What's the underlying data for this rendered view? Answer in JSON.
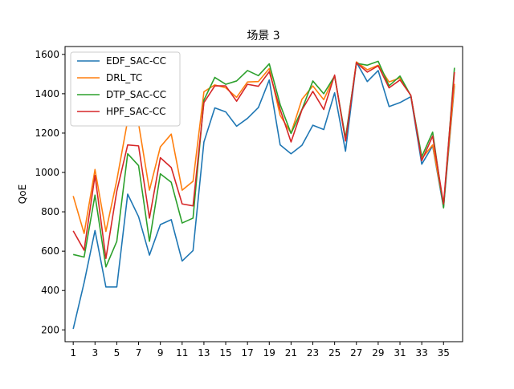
{
  "chart_data": {
    "type": "line",
    "title": "场景 3",
    "xlabel": "",
    "ylabel": "QoE",
    "xlim": [
      1,
      36
    ],
    "ylim": [
      140,
      1640
    ],
    "xticks": [
      1,
      3,
      5,
      7,
      9,
      11,
      13,
      15,
      17,
      19,
      21,
      23,
      25,
      27,
      29,
      31,
      33,
      35
    ],
    "yticks": [
      200,
      400,
      600,
      800,
      1000,
      1200,
      1400,
      1600
    ],
    "grid": false,
    "legend_position": "top-left",
    "x": [
      1,
      2,
      3,
      4,
      5,
      6,
      7,
      8,
      9,
      10,
      11,
      12,
      13,
      14,
      15,
      16,
      17,
      18,
      19,
      20,
      21,
      22,
      23,
      24,
      25,
      26,
      27,
      28,
      29,
      30,
      31,
      32,
      33,
      34,
      35,
      36
    ],
    "series": [
      {
        "name": "EDF_SAC-CC",
        "color": "#1f77b4",
        "values": [
          205,
          440,
          705,
          418,
          418,
          890,
          775,
          580,
          735,
          760,
          550,
          603,
          1155,
          1328,
          1308,
          1235,
          1275,
          1330,
          1470,
          1140,
          1095,
          1138,
          1240,
          1218,
          1405,
          1108,
          1560,
          1462,
          1518,
          1335,
          1355,
          1385,
          1042,
          1135,
          822,
          1440
        ]
      },
      {
        "name": "DRL_TC",
        "color": "#ff7f0e",
        "values": [
          880,
          690,
          1015,
          700,
          960,
          1265,
          1248,
          910,
          1130,
          1195,
          910,
          955,
          1410,
          1445,
          1430,
          1382,
          1460,
          1462,
          1528,
          1290,
          1200,
          1372,
          1440,
          1370,
          1490,
          1165,
          1562,
          1522,
          1545,
          1460,
          1480,
          1390,
          1070,
          1140,
          835,
          1450
        ]
      },
      {
        "name": "DTP_SAC-CC",
        "color": "#2ca02c",
        "values": [
          583,
          570,
          885,
          520,
          650,
          1095,
          1035,
          650,
          993,
          950,
          743,
          768,
          1368,
          1483,
          1448,
          1465,
          1518,
          1492,
          1552,
          1345,
          1198,
          1320,
          1465,
          1400,
          1490,
          1175,
          1555,
          1545,
          1565,
          1440,
          1490,
          1390,
          1080,
          1205,
          820,
          1532
        ]
      },
      {
        "name": "HPF_SAC-CC",
        "color": "#d62728",
        "values": [
          703,
          605,
          985,
          563,
          905,
          1140,
          1135,
          768,
          1075,
          1025,
          840,
          830,
          1355,
          1440,
          1440,
          1362,
          1448,
          1438,
          1512,
          1320,
          1155,
          1318,
          1412,
          1320,
          1495,
          1160,
          1558,
          1510,
          1542,
          1430,
          1470,
          1392,
          1060,
          1185,
          840,
          1510
        ]
      }
    ]
  }
}
